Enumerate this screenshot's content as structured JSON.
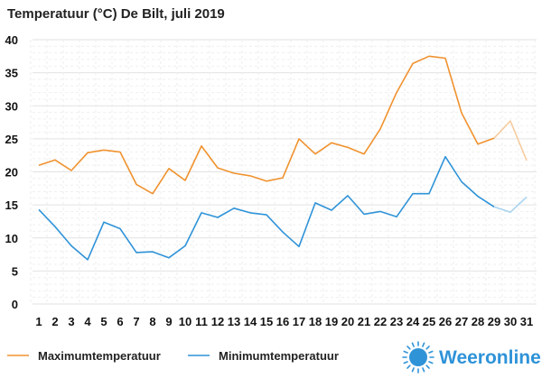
{
  "chart_data": {
    "type": "line",
    "title": "Temperatuur (°C)  De Bilt, juli 2019",
    "x": [
      1,
      2,
      3,
      4,
      5,
      6,
      7,
      8,
      9,
      10,
      11,
      12,
      13,
      14,
      15,
      16,
      17,
      18,
      19,
      20,
      21,
      22,
      23,
      24,
      25,
      26,
      27,
      28,
      29,
      30,
      31
    ],
    "ylim": [
      0,
      40
    ],
    "yticks": [
      0,
      5,
      10,
      15,
      20,
      25,
      30,
      35,
      40
    ],
    "grid": true,
    "legend_position": "bottom-left",
    "forecast_from_day": 29,
    "series": [
      {
        "name": "Maximumtemperatuur",
        "color": "#f0922e",
        "forecast_color": "#f6cc9e",
        "values": [
          21.0,
          21.8,
          20.2,
          22.9,
          23.3,
          23.0,
          18.1,
          16.7,
          20.5,
          18.7,
          23.9,
          20.6,
          19.8,
          19.4,
          18.6,
          19.1,
          25.0,
          22.7,
          24.4,
          23.7,
          22.7,
          26.5,
          32.0,
          36.4,
          37.5,
          37.2,
          28.9,
          24.2,
          25.1,
          27.7,
          21.7
        ]
      },
      {
        "name": "Minimumtemperatuur",
        "color": "#2f93d8",
        "forecast_color": "#a8d3f0",
        "values": [
          14.3,
          11.7,
          8.8,
          6.7,
          12.4,
          11.4,
          7.8,
          7.9,
          7.0,
          8.8,
          13.8,
          13.1,
          14.5,
          13.8,
          13.5,
          10.9,
          8.7,
          15.3,
          14.2,
          16.4,
          13.6,
          14.0,
          13.2,
          16.7,
          16.7,
          22.3,
          18.5,
          16.3,
          14.7,
          13.9,
          16.2
        ]
      }
    ]
  },
  "brand": {
    "name": "Weeronline",
    "color": "#2f93d8",
    "icon": "sun-logo-icon"
  }
}
